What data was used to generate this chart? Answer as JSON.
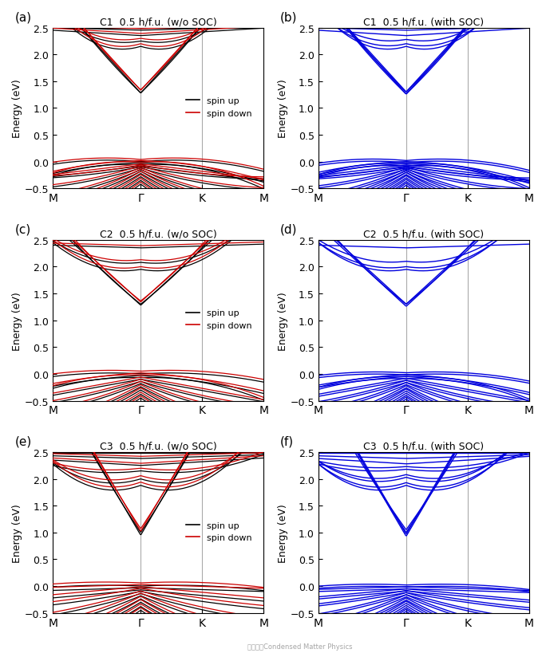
{
  "panels": [
    {
      "label": "(a)",
      "title": "C1  0.5 h/f.u. (w/o SOC)",
      "type": "wosoc",
      "config": "C1"
    },
    {
      "label": "(b)",
      "title": "C1  0.5 h/f.u. (with SOC)",
      "type": "soc",
      "config": "C1"
    },
    {
      "label": "(c)",
      "title": "C2  0.5 h/f.u. (w/o SOC)",
      "type": "wosoc",
      "config": "C2"
    },
    {
      "label": "(d)",
      "title": "C2  0.5 h/f.u. (with SOC)",
      "type": "soc",
      "config": "C2"
    },
    {
      "label": "(e)",
      "title": "C3  0.5 h/f.u. (w/o SOC)",
      "type": "wosoc",
      "config": "C3"
    },
    {
      "label": "(f)",
      "title": "C3  0.5 h/f.u. (with SOC)",
      "type": "soc",
      "config": "C3"
    }
  ],
  "ylim": [
    -0.5,
    2.5
  ],
  "yticks": [
    -0.5,
    0.0,
    0.5,
    1.0,
    1.5,
    2.0,
    2.5
  ],
  "xtick_labels": [
    "M",
    "Γ",
    "K",
    "M"
  ],
  "kpoints": [
    0.0,
    1.0,
    1.7,
    2.4
  ],
  "color_up": "#000000",
  "color_down": "#cc0000",
  "color_soc": "#0000dd",
  "color_vline": "#aaaaaa",
  "lw_band": 0.9,
  "lw_band_soc": 1.0,
  "figsize": [
    6.84,
    8.2
  ],
  "dpi": 100
}
